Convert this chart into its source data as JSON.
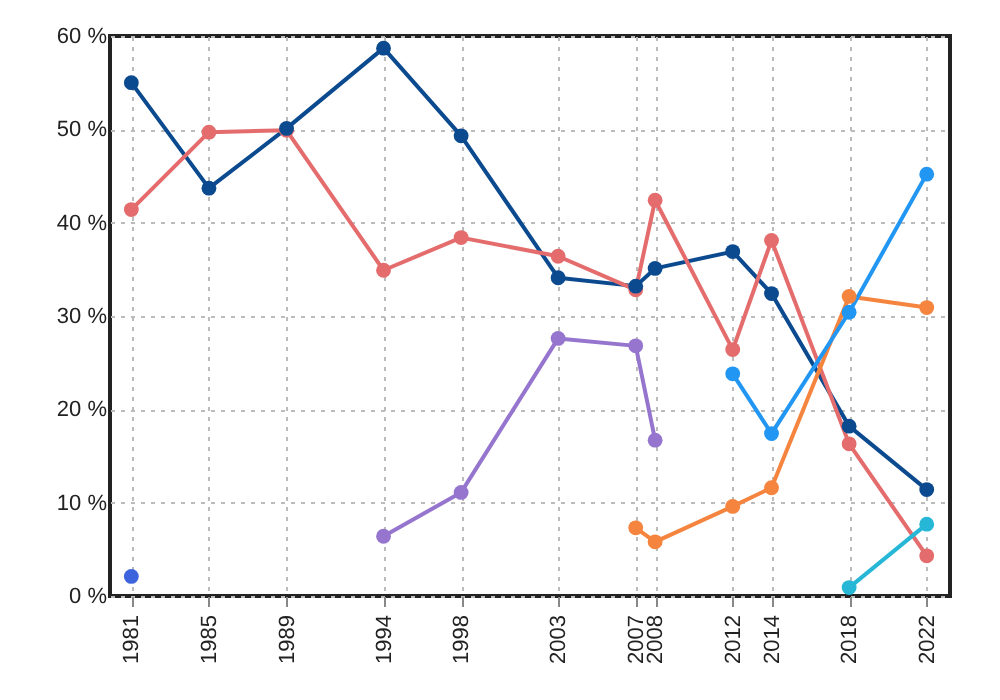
{
  "chart_data": {
    "type": "line",
    "x": [
      1981,
      1985,
      1989,
      1994,
      1998,
      2003,
      2007,
      2008,
      2012,
      2014,
      2018,
      2022
    ],
    "xlim": [
      1979.9,
      2023.2
    ],
    "xticks": [
      1981,
      1985,
      1989,
      1994,
      1998,
      2003,
      2007,
      2008,
      2012,
      2014,
      2018,
      2022
    ],
    "ylim": [
      0,
      60
    ],
    "yticks": [
      {
        "value": 0,
        "label": "0 %"
      },
      {
        "value": 10,
        "label": "10 %"
      },
      {
        "value": 20,
        "label": "20 %"
      },
      {
        "value": 30,
        "label": "30 %"
      },
      {
        "value": 40,
        "label": "40 %"
      },
      {
        "value": 50,
        "label": "50 %"
      },
      {
        "value": 60,
        "label": "60 %"
      }
    ],
    "grid": true,
    "marker": "circle",
    "line_style": "solid",
    "series": [
      {
        "color": "#0b4a8f",
        "values": [
          55.0,
          43.7,
          50.1,
          58.7,
          49.3,
          34.1,
          33.2,
          35.1,
          36.9,
          32.4,
          18.2,
          11.4
        ]
      },
      {
        "color": "#e46c6c",
        "values": [
          41.4,
          49.7,
          49.9,
          34.9,
          38.4,
          36.4,
          32.8,
          42.4,
          26.4,
          38.1,
          16.3,
          4.3
        ]
      },
      {
        "color": "#9575cd",
        "values": [
          null,
          null,
          null,
          6.4,
          11.1,
          27.6,
          26.8,
          16.7,
          null,
          null,
          null,
          null
        ]
      },
      {
        "color": "#f5843e",
        "values": [
          null,
          null,
          null,
          null,
          null,
          null,
          7.3,
          5.8,
          9.6,
          11.6,
          32.1,
          30.9
        ]
      },
      {
        "color": "#2196f3",
        "values": [
          null,
          null,
          null,
          null,
          null,
          null,
          null,
          null,
          23.8,
          17.4,
          30.4,
          45.2
        ]
      },
      {
        "color": "#26b6d6",
        "values": [
          null,
          null,
          null,
          null,
          null,
          null,
          null,
          null,
          null,
          null,
          0.9,
          7.7
        ]
      },
      {
        "color": "#3d63dd",
        "values": [
          2.1,
          null,
          null,
          null,
          null,
          null,
          null,
          null,
          null,
          null,
          null,
          null
        ]
      }
    ]
  }
}
